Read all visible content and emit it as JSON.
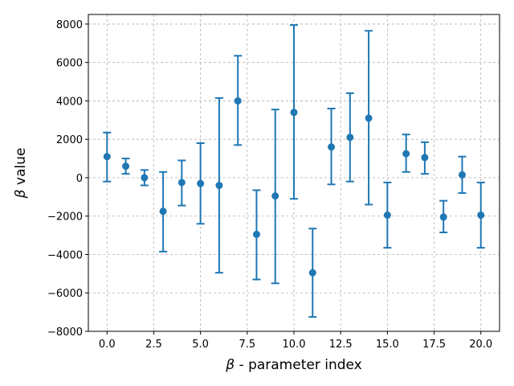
{
  "chart_data": {
    "type": "scatter",
    "style": "errorbar",
    "color": "#1f77b4",
    "grid_color": "#b0b0b0",
    "xlabel": "β - parameter index",
    "xlabel_symbol": "β",
    "xlabel_rest": " - parameter index",
    "ylabel": "β value",
    "ylabel_symbol": "β",
    "ylabel_rest": " value",
    "xlim": [
      -1,
      21
    ],
    "ylim": [
      -8000,
      8500
    ],
    "xticks": [
      0.0,
      2.5,
      5.0,
      7.5,
      10.0,
      12.5,
      15.0,
      17.5,
      20.0
    ],
    "xtick_labels": [
      "0.0",
      "2.5",
      "5.0",
      "7.5",
      "10.0",
      "12.5",
      "15.0",
      "17.5",
      "20.0"
    ],
    "yticks": [
      -8000,
      -6000,
      -4000,
      -2000,
      0,
      2000,
      4000,
      6000,
      8000
    ],
    "ytick_labels": [
      "−8000",
      "−6000",
      "−4000",
      "−2000",
      "0",
      "2000",
      "4000",
      "6000",
      "8000"
    ],
    "grid": true,
    "points": [
      {
        "x": 0,
        "y": 1100,
        "lo": -200,
        "hi": 2350
      },
      {
        "x": 1,
        "y": 600,
        "lo": 200,
        "hi": 1000
      },
      {
        "x": 2,
        "y": 0,
        "lo": -400,
        "hi": 400
      },
      {
        "x": 3,
        "y": -1750,
        "lo": -3850,
        "hi": 300
      },
      {
        "x": 4,
        "y": -250,
        "lo": -1450,
        "hi": 900
      },
      {
        "x": 5,
        "y": -300,
        "lo": -2400,
        "hi": 1800
      },
      {
        "x": 6,
        "y": -400,
        "lo": -4950,
        "hi": 4150
      },
      {
        "x": 7,
        "y": 4000,
        "lo": 1700,
        "hi": 6350
      },
      {
        "x": 8,
        "y": -2950,
        "lo": -5300,
        "hi": -650
      },
      {
        "x": 9,
        "y": -950,
        "lo": -5500,
        "hi": 3550
      },
      {
        "x": 10,
        "y": 3400,
        "lo": -1100,
        "hi": 7950
      },
      {
        "x": 11,
        "y": -4950,
        "lo": -7250,
        "hi": -2650
      },
      {
        "x": 12,
        "y": 1600,
        "lo": -350,
        "hi": 3600
      },
      {
        "x": 13,
        "y": 2100,
        "lo": -200,
        "hi": 4400
      },
      {
        "x": 14,
        "y": 3100,
        "lo": -1400,
        "hi": 7650
      },
      {
        "x": 15,
        "y": -1950,
        "lo": -3650,
        "hi": -250
      },
      {
        "x": 16,
        "y": 1250,
        "lo": 300,
        "hi": 2250
      },
      {
        "x": 17,
        "y": 1050,
        "lo": 200,
        "hi": 1850
      },
      {
        "x": 18,
        "y": -2050,
        "lo": -2850,
        "hi": -1200
      },
      {
        "x": 19,
        "y": 150,
        "lo": -800,
        "hi": 1100
      },
      {
        "x": 20,
        "y": -1950,
        "lo": -3650,
        "hi": -250
      }
    ]
  }
}
